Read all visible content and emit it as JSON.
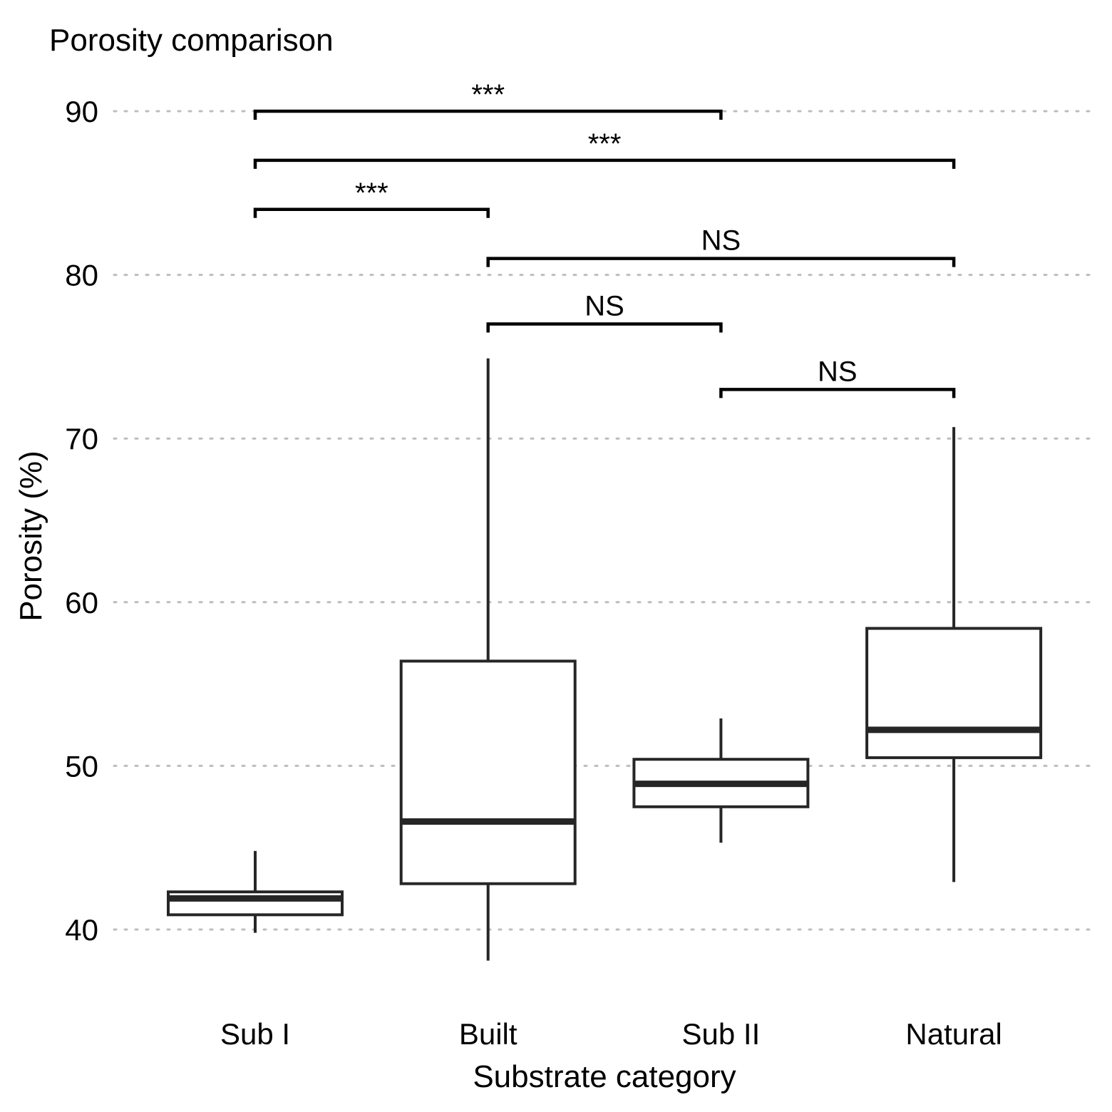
{
  "chart_data": {
    "type": "box",
    "title": "Porosity comparison",
    "xlabel": "Substrate category",
    "ylabel": "Porosity (%)",
    "ylim": [
      35,
      92
    ],
    "yticks": [
      40,
      50,
      60,
      70,
      80,
      90
    ],
    "ytick_labels": [
      "40",
      "50",
      "60",
      "70",
      "80",
      "90"
    ],
    "grid": "horizontal dotted",
    "categories": [
      "Sub I",
      "Built",
      "Sub II",
      "Natural"
    ],
    "boxes": [
      {
        "category": "Sub I",
        "whisker_low": 39.8,
        "q1": 40.9,
        "median": 41.9,
        "q3": 42.3,
        "whisker_high": 44.8
      },
      {
        "category": "Built",
        "whisker_low": 38.1,
        "q1": 42.8,
        "median": 46.6,
        "q3": 56.4,
        "whisker_high": 74.9
      },
      {
        "category": "Sub II",
        "whisker_low": 45.3,
        "q1": 47.5,
        "median": 48.9,
        "q3": 50.4,
        "whisker_high": 52.9
      },
      {
        "category": "Natural",
        "whisker_low": 42.9,
        "q1": 50.5,
        "median": 52.2,
        "q3": 58.4,
        "whisker_high": 70.7
      }
    ],
    "comparisons": [
      {
        "from": "Sub I",
        "to": "Sub II",
        "y": 90.0,
        "label": "***"
      },
      {
        "from": "Sub I",
        "to": "Natural",
        "y": 87.0,
        "label": "***"
      },
      {
        "from": "Sub I",
        "to": "Built",
        "y": 84.0,
        "label": "***"
      },
      {
        "from": "Built",
        "to": "Natural",
        "y": 81.0,
        "label": "NS"
      },
      {
        "from": "Built",
        "to": "Sub II",
        "y": 77.0,
        "label": "NS"
      },
      {
        "from": "Sub II",
        "to": "Natural",
        "y": 73.0,
        "label": "NS"
      }
    ],
    "colors": {
      "box_edge": "#262626",
      "box_fill": "#ffffff",
      "grid": "#bdbdbd",
      "bracket": "#000000"
    }
  }
}
